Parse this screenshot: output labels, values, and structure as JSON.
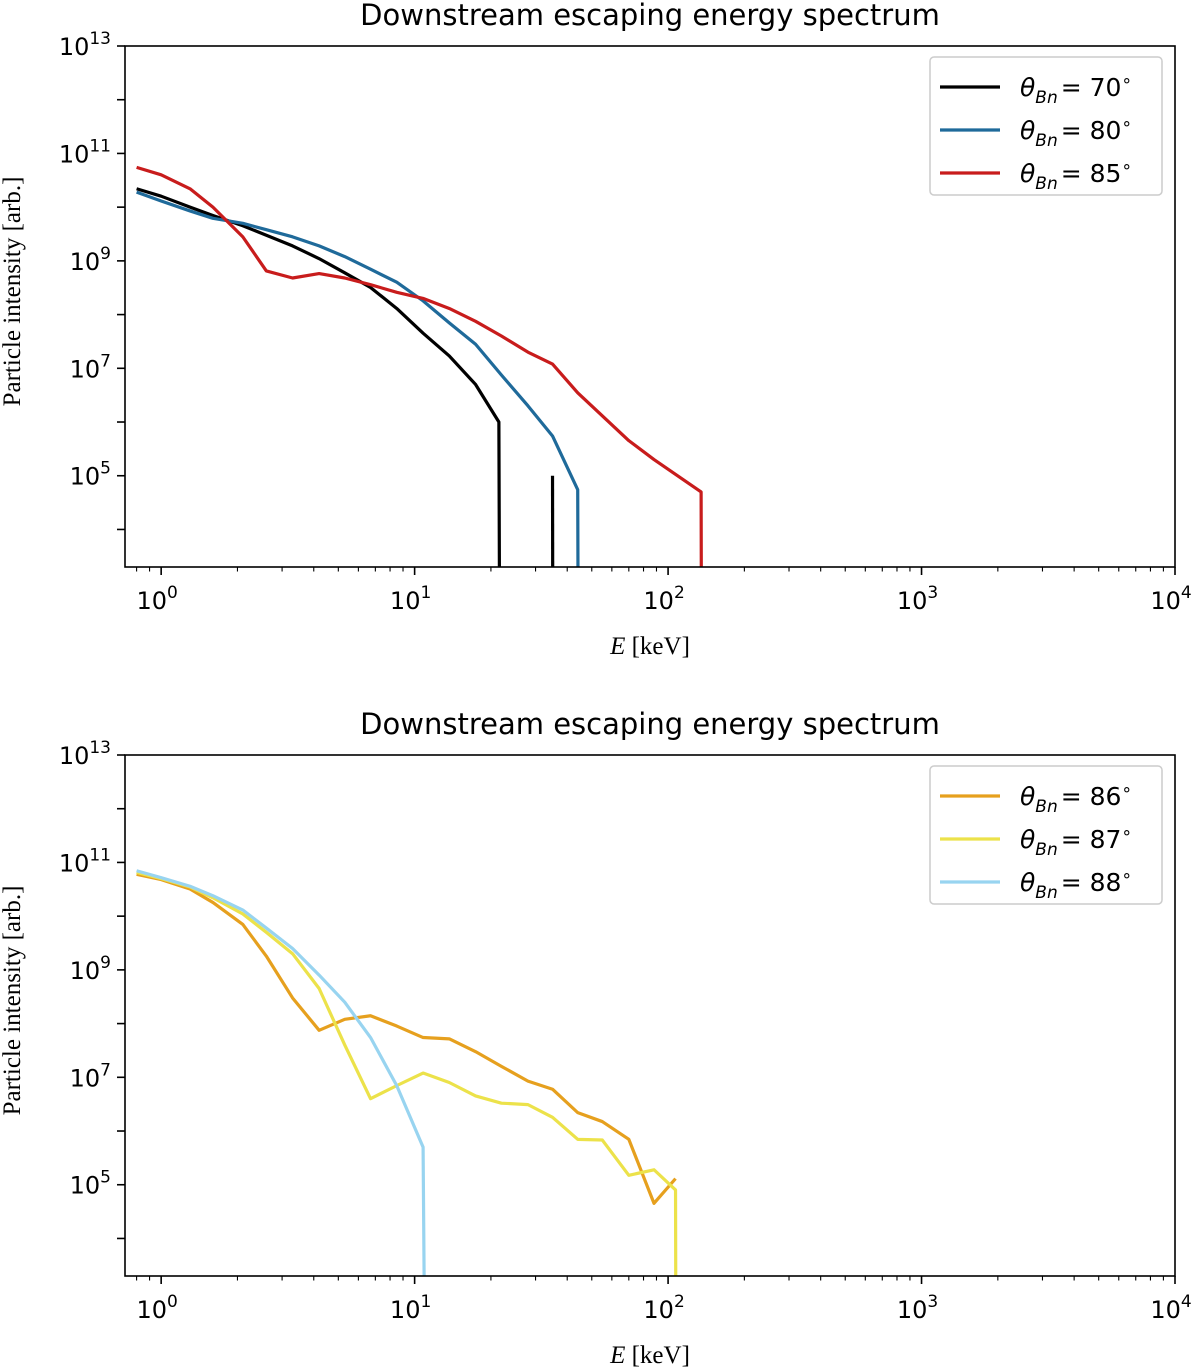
{
  "chart_data": [
    {
      "type": "line",
      "title": "Downstream escaping energy spectrum",
      "xlabel_var": "E",
      "xlabel_unit": "[keV]",
      "ylabel": "Particle intensity [arb.]",
      "xscale": "log",
      "yscale": "log",
      "xlim": [
        0.72,
        10000
      ],
      "ylim": [
        2000,
        10000000000000
      ],
      "xticks": [
        {
          "base": "10",
          "exp": "0"
        },
        {
          "base": "10",
          "exp": "1"
        },
        {
          "base": "10",
          "exp": "2"
        },
        {
          "base": "10",
          "exp": "3"
        },
        {
          "base": "10",
          "exp": "4"
        }
      ],
      "yticks": [
        {
          "base": "10",
          "exp": "5"
        },
        {
          "base": "10",
          "exp": "7"
        },
        {
          "base": "10",
          "exp": "9"
        },
        {
          "base": "10",
          "exp": "11"
        },
        {
          "base": "10",
          "exp": "13"
        }
      ],
      "legend_position": "top-right",
      "series": [
        {
          "legend_symbol": "θ",
          "legend_sub": "Bn",
          "legend_value": "= 70",
          "legend_deg": "∘",
          "color": "#000000",
          "segments": [
            [
              [
                0.8,
                22000000000.0
              ],
              [
                1.0,
                16000000000.0
              ],
              [
                1.3,
                10000000000.0
              ],
              [
                1.6,
                7000000000.0
              ],
              [
                2.1,
                4500000000.0
              ],
              [
                2.6,
                3000000000.0
              ],
              [
                3.3,
                1900000000.0
              ],
              [
                4.2,
                1100000000.0
              ],
              [
                5.3,
                600000000.0
              ],
              [
                6.7,
                320000000.0
              ],
              [
                8.5,
                130000000.0
              ],
              [
                10.8,
                45000000.0
              ],
              [
                13.7,
                17000000.0
              ],
              [
                17.4,
                5000000.0
              ],
              [
                21.5,
                1000000.0
              ],
              [
                21.6,
                2000
              ]
            ],
            [
              [
                35.0,
                100000.0
              ],
              [
                35.05,
                2000
              ]
            ]
          ]
        },
        {
          "legend_symbol": "θ",
          "legend_sub": "Bn",
          "legend_value": "= 80",
          "legend_deg": "∘",
          "color": "#1f6a9a",
          "segments": [
            [
              [
                0.8,
                19000000000.0
              ],
              [
                1.0,
                13000000000.0
              ],
              [
                1.3,
                8500000000.0
              ],
              [
                1.6,
                6200000000.0
              ],
              [
                2.1,
                5000000000.0
              ],
              [
                2.6,
                3800000000.0
              ],
              [
                3.3,
                2800000000.0
              ],
              [
                4.2,
                1900000000.0
              ],
              [
                5.3,
                1200000000.0
              ],
              [
                6.7,
                700000000.0
              ],
              [
                8.5,
                400000000.0
              ],
              [
                10.8,
                180000000.0
              ],
              [
                13.7,
                70000000.0
              ],
              [
                17.4,
                28000000.0
              ],
              [
                22.0,
                7500000.0
              ],
              [
                28.0,
                2000000.0
              ],
              [
                35.0,
                550000.0
              ],
              [
                44.0,
                55000.0
              ],
              [
                44.1,
                2000
              ]
            ]
          ]
        },
        {
          "legend_symbol": "θ",
          "legend_sub": "Bn",
          "legend_value": "= 85",
          "legend_deg": "∘",
          "color": "#c81c1c",
          "segments": [
            [
              [
                0.8,
                55000000000.0
              ],
              [
                1.0,
                40000000000.0
              ],
              [
                1.3,
                22000000000.0
              ],
              [
                1.6,
                10000000000.0
              ],
              [
                2.1,
                2800000000.0
              ],
              [
                2.6,
                650000000.0
              ],
              [
                3.3,
                480000000.0
              ],
              [
                4.2,
                580000000.0
              ],
              [
                5.3,
                480000000.0
              ],
              [
                6.7,
                360000000.0
              ],
              [
                8.5,
                260000000.0
              ],
              [
                10.8,
                200000000.0
              ],
              [
                13.7,
                130000000.0
              ],
              [
                17.4,
                75000000.0
              ],
              [
                22.0,
                40000000.0
              ],
              [
                28.0,
                20000000.0
              ],
              [
                35.0,
                12000000.0
              ],
              [
                44.0,
                3500000.0
              ],
              [
                70.0,
                450000.0
              ],
              [
                88.0,
                200000.0
              ],
              [
                135.0,
                50000.0
              ],
              [
                135.2,
                2000
              ]
            ]
          ]
        }
      ]
    },
    {
      "type": "line",
      "title": "Downstream escaping energy spectrum",
      "xlabel_var": "E",
      "xlabel_unit": "[keV]",
      "ylabel": "Particle intensity [arb.]",
      "xscale": "log",
      "yscale": "log",
      "xlim": [
        0.72,
        10000
      ],
      "ylim": [
        2000,
        10000000000000
      ],
      "xticks": [
        {
          "base": "10",
          "exp": "0"
        },
        {
          "base": "10",
          "exp": "1"
        },
        {
          "base": "10",
          "exp": "2"
        },
        {
          "base": "10",
          "exp": "3"
        },
        {
          "base": "10",
          "exp": "4"
        }
      ],
      "yticks": [
        {
          "base": "10",
          "exp": "5"
        },
        {
          "base": "10",
          "exp": "7"
        },
        {
          "base": "10",
          "exp": "9"
        },
        {
          "base": "10",
          "exp": "11"
        },
        {
          "base": "10",
          "exp": "13"
        }
      ],
      "legend_position": "top-right",
      "series": [
        {
          "legend_symbol": "θ",
          "legend_sub": "Bn",
          "legend_value": "= 86",
          "legend_deg": "∘",
          "color": "#e6a01e",
          "segments": [
            [
              [
                0.8,
                60000000000.0
              ],
              [
                1.0,
                48000000000.0
              ],
              [
                1.3,
                32000000000.0
              ],
              [
                1.6,
                18000000000.0
              ],
              [
                2.1,
                7000000000.0
              ],
              [
                2.6,
                1800000000.0
              ],
              [
                3.3,
                300000000.0
              ],
              [
                4.2,
                75000000.0
              ],
              [
                5.3,
                120000000.0
              ],
              [
                6.7,
                140000000.0
              ],
              [
                8.5,
                90000000.0
              ],
              [
                10.8,
                55000000.0
              ],
              [
                13.7,
                52000000.0
              ],
              [
                17.4,
                30000000.0
              ],
              [
                22.0,
                16000000.0
              ],
              [
                28.0,
                8500000.0
              ],
              [
                35.0,
                6000000.0
              ],
              [
                44.0,
                2200000.0
              ],
              [
                55.0,
                1500000.0
              ],
              [
                70.0,
                700000.0
              ],
              [
                88.0,
                45000.0
              ],
              [
                107.0,
                130000.0
              ]
            ]
          ]
        },
        {
          "legend_symbol": "θ",
          "legend_sub": "Bn",
          "legend_value": "= 87",
          "legend_deg": "∘",
          "color": "#ece24a",
          "segments": [
            [
              [
                0.8,
                65000000000.0
              ],
              [
                1.0,
                50000000000.0
              ],
              [
                1.3,
                35000000000.0
              ],
              [
                1.6,
                22000000000.0
              ],
              [
                2.1,
                11000000000.0
              ],
              [
                2.6,
                5000000000.0
              ],
              [
                3.3,
                2000000000.0
              ],
              [
                4.2,
                450000000.0
              ],
              [
                5.3,
                40000000.0
              ],
              [
                6.7,
                4000000.0
              ],
              [
                8.5,
                7000000.0
              ],
              [
                10.8,
                12000000.0
              ],
              [
                13.7,
                8000000.0
              ],
              [
                17.4,
                4500000.0
              ],
              [
                22.0,
                3300000.0
              ],
              [
                28.0,
                3100000.0
              ],
              [
                35.0,
                1800000.0
              ],
              [
                44.0,
                700000.0
              ],
              [
                55.0,
                680000.0
              ],
              [
                70.0,
                150000.0
              ],
              [
                88.0,
                190000.0
              ],
              [
                107.0,
                80000.0
              ],
              [
                107.2,
                2000
              ]
            ]
          ]
        },
        {
          "legend_symbol": "θ",
          "legend_sub": "Bn",
          "legend_value": "= 88",
          "legend_deg": "∘",
          "color": "#98d4f0",
          "segments": [
            [
              [
                0.8,
                70000000000.0
              ],
              [
                1.0,
                52000000000.0
              ],
              [
                1.3,
                36000000000.0
              ],
              [
                1.6,
                24000000000.0
              ],
              [
                2.1,
                13000000000.0
              ],
              [
                2.6,
                6000000000.0
              ],
              [
                3.3,
                2500000000.0
              ],
              [
                4.2,
                800000000.0
              ],
              [
                5.3,
                250000000.0
              ],
              [
                6.7,
                55000000.0
              ],
              [
                8.5,
                7000000.0
              ],
              [
                10.8,
                500000.0
              ],
              [
                10.9,
                2000
              ]
            ]
          ]
        }
      ]
    }
  ]
}
